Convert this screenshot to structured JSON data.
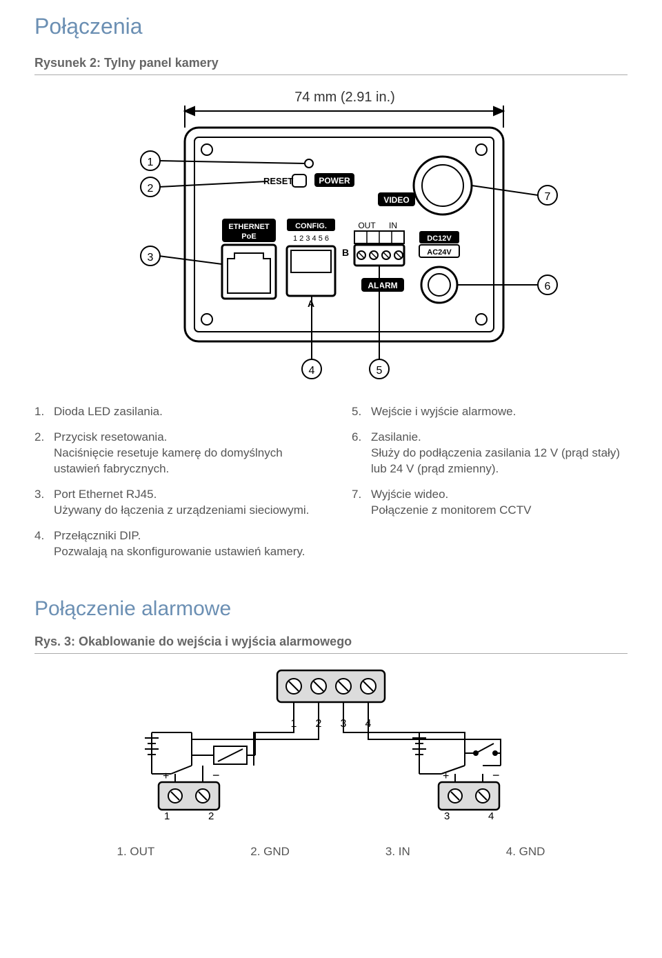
{
  "section1_title": "Połączenia",
  "figure2_title": "Rysunek 2: Tylny panel kamery",
  "diagram1": {
    "dimension_label": "74 mm (2.91 in.)",
    "labels": {
      "reset": "RESET",
      "power": "POWER",
      "video": "VIDEO",
      "ethernet1": "ETHERNET",
      "ethernet2": "PoE",
      "config": "CONFIG.",
      "config_nums": "1 2 3 4 5 6",
      "B": "B",
      "A": "A",
      "out": "OUT",
      "in": "IN",
      "alarm": "ALARM",
      "dc": "DC12V",
      "ac": "AC24V"
    },
    "callouts": [
      "1",
      "2",
      "3",
      "4",
      "5",
      "6",
      "7"
    ],
    "stroke": "#000000",
    "fill_black": "#000000",
    "fill_gray": "#d0d0d0",
    "fill_ltgray": "#e8e8e8",
    "text_white": "#ffffff"
  },
  "legend": {
    "left": [
      {
        "num": "1.",
        "title": "Dioda LED zasilania.",
        "desc": ""
      },
      {
        "num": "2.",
        "title": "Przycisk resetowania.",
        "desc": "Naciśnięcie resetuje kamerę do domyślnych ustawień fabrycznych."
      },
      {
        "num": "3.",
        "title": "Port Ethernet RJ45.",
        "desc": "Używany do łączenia z urządzeniami sieciowymi."
      },
      {
        "num": "4.",
        "title": "Przełączniki DIP.",
        "desc": "Pozwalają na skonfigurowanie ustawień kamery."
      }
    ],
    "right": [
      {
        "num": "5.",
        "title": "Wejście i wyjście alarmowe.",
        "desc": ""
      },
      {
        "num": "6.",
        "title": "Zasilanie.",
        "desc": "Służy do podłączenia zasilania 12 V (prąd stały) lub 24 V (prąd zmienny)."
      },
      {
        "num": "7.",
        "title": "Wyjście wideo.",
        "desc": "Połączenie z monitorem CCTV"
      }
    ]
  },
  "section2_title": "Połączenie alarmowe",
  "figure3_title": "Rys. 3: Okablowanie do wejścia i wyjścia alarmowego",
  "diagram2": {
    "terminal_nums": [
      "1",
      "2",
      "3",
      "4"
    ],
    "stroke": "#000000",
    "fill_ltgray": "#dcdcdc"
  },
  "bottom_labels": [
    "1. OUT",
    "2. GND",
    "3. IN",
    "4. GND"
  ]
}
